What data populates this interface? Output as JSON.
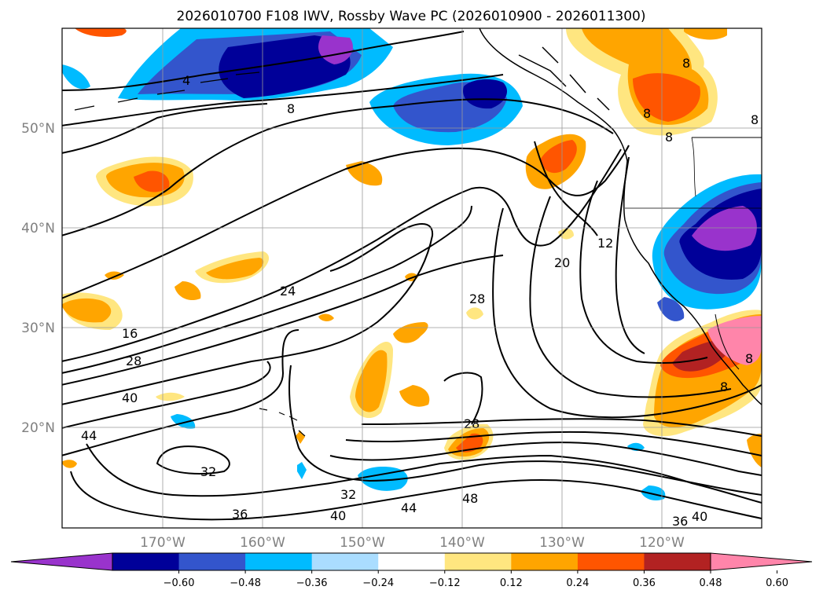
{
  "title": "2026010700 F108 IWV, Rossby Wave PC (2026010900 - 2026011300)",
  "map": {
    "lat_labels": [
      "50°N",
      "40°N",
      "30°N",
      "20°N"
    ],
    "lon_labels": [
      "170°W",
      "160°W",
      "150°W",
      "140°W",
      "130°W",
      "120°W"
    ],
    "contour_labels": [
      "4",
      "8",
      "8",
      "8",
      "8",
      "8",
      "8",
      "8",
      "12",
      "16",
      "20",
      "24",
      "28",
      "28",
      "28",
      "32",
      "32",
      "36",
      "36",
      "40",
      "40",
      "40",
      "44",
      "44",
      "48"
    ]
  },
  "colorbar": {
    "colors": [
      "#9933cc",
      "#000099",
      "#3355cc",
      "#00bbff",
      "#aaddff",
      "#ffffff",
      "#ffe680",
      "#ffa500",
      "#ff5500",
      "#b22222",
      "#ff85aa"
    ],
    "tick_labels": [
      "−0.60",
      "−0.48",
      "−0.36",
      "−0.24",
      "−0.12",
      "0.12",
      "0.24",
      "0.36",
      "0.48",
      "0.60"
    ]
  }
}
